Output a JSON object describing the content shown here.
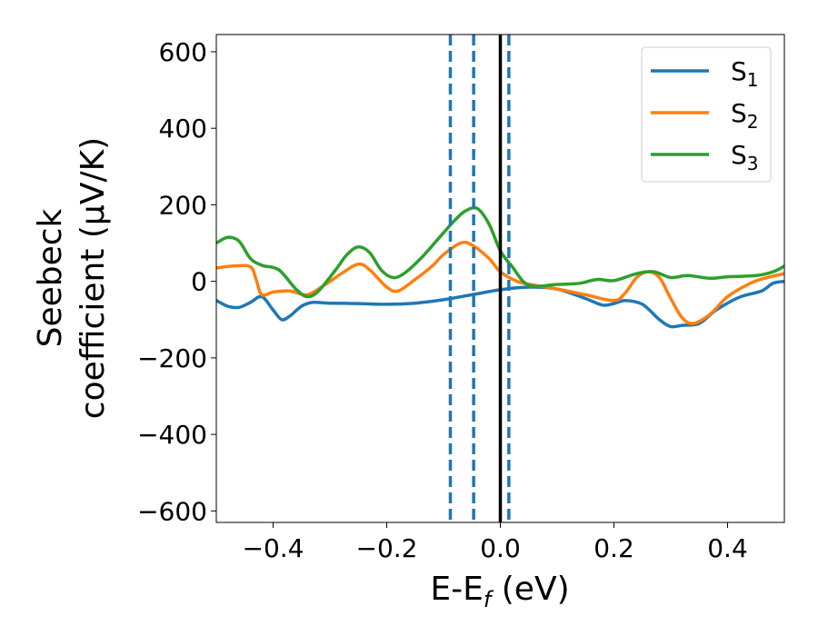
{
  "chart_data": {
    "type": "line",
    "title": "",
    "xlabel": "E-E",
    "xlabel_sub": "f",
    "xlabel_unit": " (eV)",
    "ylabel_line1": "Seebeck",
    "ylabel_line2": "coefficient  (μV/K)",
    "xlim": [
      -0.5,
      0.5
    ],
    "ylim": [
      -630,
      645
    ],
    "xticks": [
      -0.4,
      -0.2,
      0.0,
      0.2,
      0.4
    ],
    "xtick_labels": [
      "−0.4",
      "−0.2",
      "0.0",
      "0.2",
      "0.4"
    ],
    "yticks": [
      600,
      400,
      200,
      0,
      -200,
      -400,
      -600
    ],
    "ytick_labels": [
      "600",
      "400",
      "200",
      "0",
      "−200",
      "−400",
      "−600"
    ],
    "grid": false,
    "legend_position": "top-right",
    "fermi_level_line": {
      "x": 0.0,
      "color": "#000000"
    },
    "dashed_lines": {
      "x": [
        -0.088,
        -0.047,
        0.015
      ],
      "color": "#1f77b4"
    },
    "series": [
      {
        "name": "S",
        "subscript": "1",
        "color": "#1f77b4",
        "points": [
          [
            -0.5,
            -50
          ],
          [
            -0.48,
            -65
          ],
          [
            -0.46,
            -68
          ],
          [
            -0.44,
            -55
          ],
          [
            -0.42,
            -40
          ],
          [
            -0.4,
            -75
          ],
          [
            -0.385,
            -100
          ],
          [
            -0.37,
            -90
          ],
          [
            -0.35,
            -65
          ],
          [
            -0.33,
            -55
          ],
          [
            -0.3,
            -57
          ],
          [
            -0.25,
            -58
          ],
          [
            -0.2,
            -60
          ],
          [
            -0.15,
            -57
          ],
          [
            -0.1,
            -48
          ],
          [
            -0.05,
            -35
          ],
          [
            0.0,
            -22
          ],
          [
            0.05,
            -15
          ],
          [
            0.1,
            -20
          ],
          [
            0.15,
            -45
          ],
          [
            0.18,
            -62
          ],
          [
            0.2,
            -58
          ],
          [
            0.22,
            -50
          ],
          [
            0.25,
            -60
          ],
          [
            0.28,
            -100
          ],
          [
            0.3,
            -118
          ],
          [
            0.32,
            -115
          ],
          [
            0.35,
            -110
          ],
          [
            0.38,
            -75
          ],
          [
            0.42,
            -42
          ],
          [
            0.46,
            -25
          ],
          [
            0.48,
            -5
          ],
          [
            0.5,
            0
          ]
        ]
      },
      {
        "name": "S",
        "subscript": "2",
        "color": "#ff7f0e",
        "points": [
          [
            -0.5,
            35
          ],
          [
            -0.47,
            40
          ],
          [
            -0.44,
            38
          ],
          [
            -0.43,
            5
          ],
          [
            -0.42,
            -35
          ],
          [
            -0.4,
            -28
          ],
          [
            -0.37,
            -25
          ],
          [
            -0.34,
            -35
          ],
          [
            -0.31,
            -10
          ],
          [
            -0.28,
            20
          ],
          [
            -0.25,
            45
          ],
          [
            -0.23,
            30
          ],
          [
            -0.2,
            -15
          ],
          [
            -0.18,
            -25
          ],
          [
            -0.15,
            5
          ],
          [
            -0.12,
            40
          ],
          [
            -0.1,
            70
          ],
          [
            -0.07,
            100
          ],
          [
            -0.05,
            95
          ],
          [
            -0.02,
            60
          ],
          [
            0.0,
            25
          ],
          [
            0.03,
            0
          ],
          [
            0.06,
            -10
          ],
          [
            0.1,
            -20
          ],
          [
            0.15,
            -35
          ],
          [
            0.2,
            -50
          ],
          [
            0.22,
            -30
          ],
          [
            0.24,
            10
          ],
          [
            0.26,
            25
          ],
          [
            0.28,
            10
          ],
          [
            0.3,
            -45
          ],
          [
            0.32,
            -95
          ],
          [
            0.34,
            -110
          ],
          [
            0.37,
            -85
          ],
          [
            0.4,
            -40
          ],
          [
            0.44,
            -5
          ],
          [
            0.47,
            10
          ],
          [
            0.5,
            20
          ]
        ]
      },
      {
        "name": "S",
        "subscript": "3",
        "color": "#2ca02c",
        "points": [
          [
            -0.5,
            100
          ],
          [
            -0.48,
            115
          ],
          [
            -0.46,
            105
          ],
          [
            -0.44,
            60
          ],
          [
            -0.42,
            42
          ],
          [
            -0.39,
            30
          ],
          [
            -0.36,
            -20
          ],
          [
            -0.34,
            -40
          ],
          [
            -0.32,
            -25
          ],
          [
            -0.29,
            30
          ],
          [
            -0.27,
            70
          ],
          [
            -0.25,
            90
          ],
          [
            -0.23,
            75
          ],
          [
            -0.21,
            30
          ],
          [
            -0.19,
            10
          ],
          [
            -0.17,
            20
          ],
          [
            -0.14,
            60
          ],
          [
            -0.11,
            110
          ],
          [
            -0.08,
            160
          ],
          [
            -0.06,
            185
          ],
          [
            -0.04,
            190
          ],
          [
            -0.02,
            150
          ],
          [
            0.0,
            80
          ],
          [
            0.02,
            40
          ],
          [
            0.05,
            -10
          ],
          [
            0.1,
            -8
          ],
          [
            0.14,
            -5
          ],
          [
            0.17,
            5
          ],
          [
            0.2,
            2
          ],
          [
            0.24,
            20
          ],
          [
            0.27,
            25
          ],
          [
            0.3,
            10
          ],
          [
            0.33,
            15
          ],
          [
            0.37,
            8
          ],
          [
            0.4,
            12
          ],
          [
            0.45,
            15
          ],
          [
            0.48,
            25
          ],
          [
            0.5,
            40
          ]
        ]
      }
    ]
  }
}
